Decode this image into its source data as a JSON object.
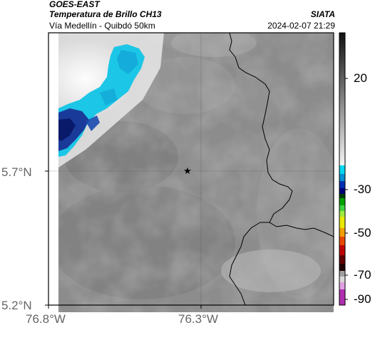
{
  "header": {
    "satellite": "GOES-EAST",
    "product": "Temperatura de Brillo CH13",
    "organization": "SIATA",
    "region": "Vía Medellín - Quibdó 50km",
    "datetime": "2024-02-07 21:29"
  },
  "map": {
    "lat_ticks": [
      "5.7°N",
      "5.2°N"
    ],
    "lon_ticks": [
      "76.8°W",
      "76.3°W"
    ],
    "marker_icon": "star-icon",
    "colors": {
      "field_gray": "#8a8a8a",
      "cold_cloud_cyan": "#1cc6e6",
      "cold_cloud_blue": "#1a3a9a",
      "border_line": "#000000"
    }
  },
  "colorbar": {
    "tick_labels": [
      "20",
      "-30",
      "-50",
      "-70",
      "-90"
    ],
    "colors": [
      "#1c1c1c",
      "#cfcfcf",
      "#00c8e8",
      "#0000a8",
      "#00a000",
      "#e8e800",
      "#e84800",
      "#c00000",
      "#200000",
      "#c8c8c8",
      "#b030b0"
    ]
  }
}
